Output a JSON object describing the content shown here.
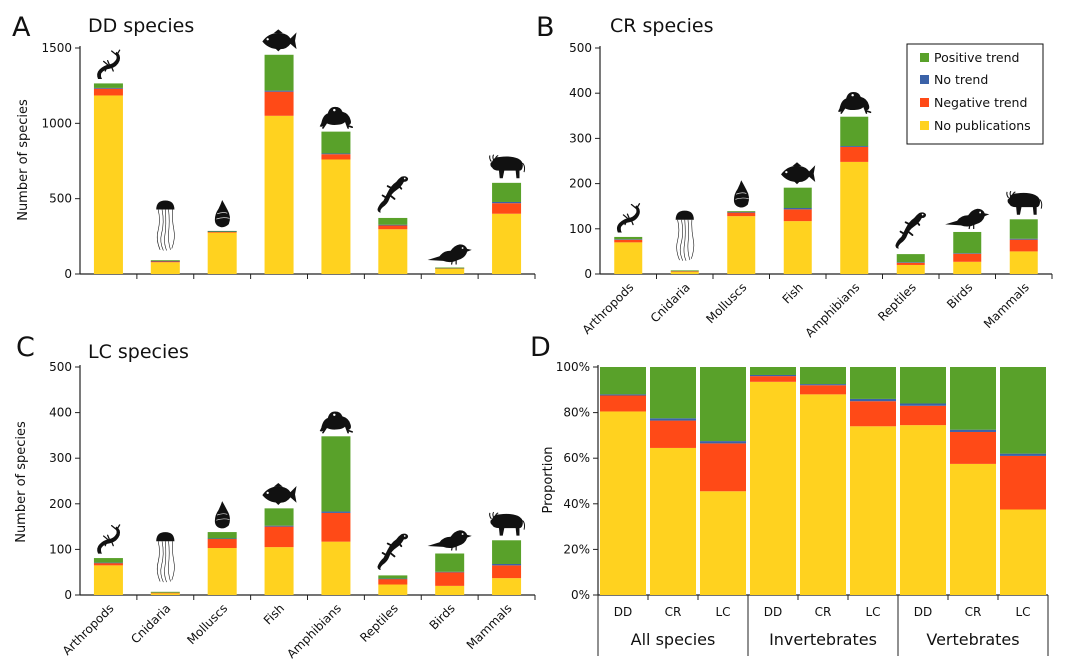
{
  "colors": {
    "positive": "#59a12a",
    "no_trend": "#3b62a8",
    "negative": "#ff4a17",
    "no_publications": "#ffd21f",
    "icon": "#111111",
    "axis": "#222222"
  },
  "legend": {
    "placement": "top-right of panel B",
    "entries": [
      {
        "key": "positive",
        "label": "Positive trend"
      },
      {
        "key": "no_trend",
        "label": "No trend"
      },
      {
        "key": "negative",
        "label": "Negative trend"
      },
      {
        "key": "no_publications",
        "label": "No publications"
      }
    ]
  },
  "chart_data": [
    {
      "panel": "A",
      "type": "bar",
      "stacked": true,
      "title": "DD species",
      "ylabel": "Number of species",
      "xlabel": "",
      "ylim": [
        0,
        1500
      ],
      "yticks": [
        0,
        500,
        1000,
        1500
      ],
      "show_category_labels": false,
      "categories": [
        "Arthropods",
        "Cnidaria",
        "Molluscs",
        "Fish",
        "Amphibians",
        "Reptiles",
        "Birds",
        "Mammals"
      ],
      "icons": [
        "scorpion-icon",
        "jellyfish-icon",
        "snail-shell-icon",
        "fish-icon",
        "frog-icon",
        "lizard-icon",
        "bird-icon",
        "bison-icon"
      ],
      "series": [
        {
          "name": "No publications",
          "key": "no_publications",
          "values": [
            1185,
            78,
            275,
            1050,
            760,
            297,
            38,
            400
          ]
        },
        {
          "name": "Negative trend",
          "key": "negative",
          "values": [
            45,
            7,
            6,
            160,
            35,
            25,
            2,
            70
          ]
        },
        {
          "name": "No trend",
          "key": "no_trend",
          "values": [
            5,
            2,
            2,
            7,
            5,
            5,
            1,
            8
          ]
        },
        {
          "name": "Positive trend",
          "key": "positive",
          "values": [
            30,
            5,
            3,
            238,
            145,
            45,
            2,
            127
          ]
        }
      ]
    },
    {
      "panel": "B",
      "type": "bar",
      "stacked": true,
      "title": "CR species",
      "ylabel": "",
      "xlabel": "",
      "ylim": [
        0,
        500
      ],
      "yticks": [
        0,
        100,
        200,
        300,
        400,
        500
      ],
      "show_category_labels": true,
      "categories": [
        "Arthropods",
        "Cnidaria",
        "Molluscs",
        "Fish",
        "Amphibians",
        "Reptiles",
        "Birds",
        "Mammals"
      ],
      "icons": [
        "scorpion-icon",
        "jellyfish-icon",
        "snail-shell-icon",
        "fish-icon",
        "frog-icon",
        "lizard-icon",
        "bird-icon",
        "bison-icon"
      ],
      "series": [
        {
          "name": "No publications",
          "key": "no_publications",
          "values": [
            70,
            5,
            128,
            117,
            248,
            20,
            27,
            50
          ]
        },
        {
          "name": "Negative trend",
          "key": "negative",
          "values": [
            6,
            1,
            8,
            26,
            33,
            5,
            18,
            26
          ]
        },
        {
          "name": "No trend",
          "key": "no_trend",
          "values": [
            1,
            0,
            1,
            3,
            2,
            1,
            1,
            2
          ]
        },
        {
          "name": "Positive trend",
          "key": "positive",
          "values": [
            5,
            2,
            2,
            45,
            65,
            18,
            47,
            43
          ]
        }
      ]
    },
    {
      "panel": "C",
      "type": "bar",
      "stacked": true,
      "title": "LC species",
      "ylabel": "Number of species",
      "xlabel": "",
      "ylim": [
        0,
        500
      ],
      "yticks": [
        0,
        100,
        200,
        300,
        400,
        500
      ],
      "show_category_labels": true,
      "categories": [
        "Arthropods",
        "Cnidaria",
        "Molluscs",
        "Fish",
        "Amphibians",
        "Reptiles",
        "Birds",
        "Mammals"
      ],
      "icons": [
        "scorpion-icon",
        "jellyfish-icon",
        "snail-shell-icon",
        "fish-icon",
        "frog-icon",
        "lizard-icon",
        "bird-icon",
        "bison-icon"
      ],
      "series": [
        {
          "name": "No publications",
          "key": "no_publications",
          "values": [
            65,
            4,
            103,
            105,
            117,
            23,
            20,
            37
          ]
        },
        {
          "name": "Negative trend",
          "key": "negative",
          "values": [
            5,
            1,
            20,
            45,
            63,
            12,
            30,
            28
          ]
        },
        {
          "name": "No trend",
          "key": "no_trend",
          "values": [
            1,
            0,
            1,
            2,
            3,
            1,
            1,
            3
          ]
        },
        {
          "name": "Positive trend",
          "key": "positive",
          "values": [
            10,
            2,
            14,
            38,
            165,
            7,
            40,
            52
          ]
        }
      ]
    },
    {
      "panel": "D",
      "type": "bar",
      "stacked": true,
      "title": "",
      "ylabel": "Proportion",
      "xlabel": "",
      "ylim": [
        0,
        1
      ],
      "yticks": [
        0,
        0.2,
        0.4,
        0.6,
        0.8,
        1.0
      ],
      "ytick_labels": [
        "0%",
        "20%",
        "40%",
        "60%",
        "80%",
        "100%"
      ],
      "show_category_labels": true,
      "categories": [
        "DD",
        "CR",
        "LC",
        "DD",
        "CR",
        "LC",
        "DD",
        "CR",
        "LC"
      ],
      "groups": [
        {
          "label": "All species",
          "count": 3
        },
        {
          "label": "Invertebrates",
          "count": 3
        },
        {
          "label": "Vertebrates",
          "count": 3
        }
      ],
      "series": [
        {
          "name": "No publications",
          "key": "no_publications",
          "values": [
            0.805,
            0.645,
            0.455,
            0.935,
            0.88,
            0.74,
            0.745,
            0.575,
            0.375
          ]
        },
        {
          "name": "Negative trend",
          "key": "negative",
          "values": [
            0.07,
            0.12,
            0.21,
            0.025,
            0.04,
            0.11,
            0.085,
            0.14,
            0.235
          ]
        },
        {
          "name": "No trend",
          "key": "no_trend",
          "values": [
            0.005,
            0.01,
            0.01,
            0.005,
            0.005,
            0.01,
            0.01,
            0.01,
            0.01
          ]
        },
        {
          "name": "Positive trend",
          "key": "positive",
          "values": [
            0.12,
            0.225,
            0.325,
            0.035,
            0.075,
            0.14,
            0.16,
            0.275,
            0.38
          ]
        }
      ]
    }
  ]
}
